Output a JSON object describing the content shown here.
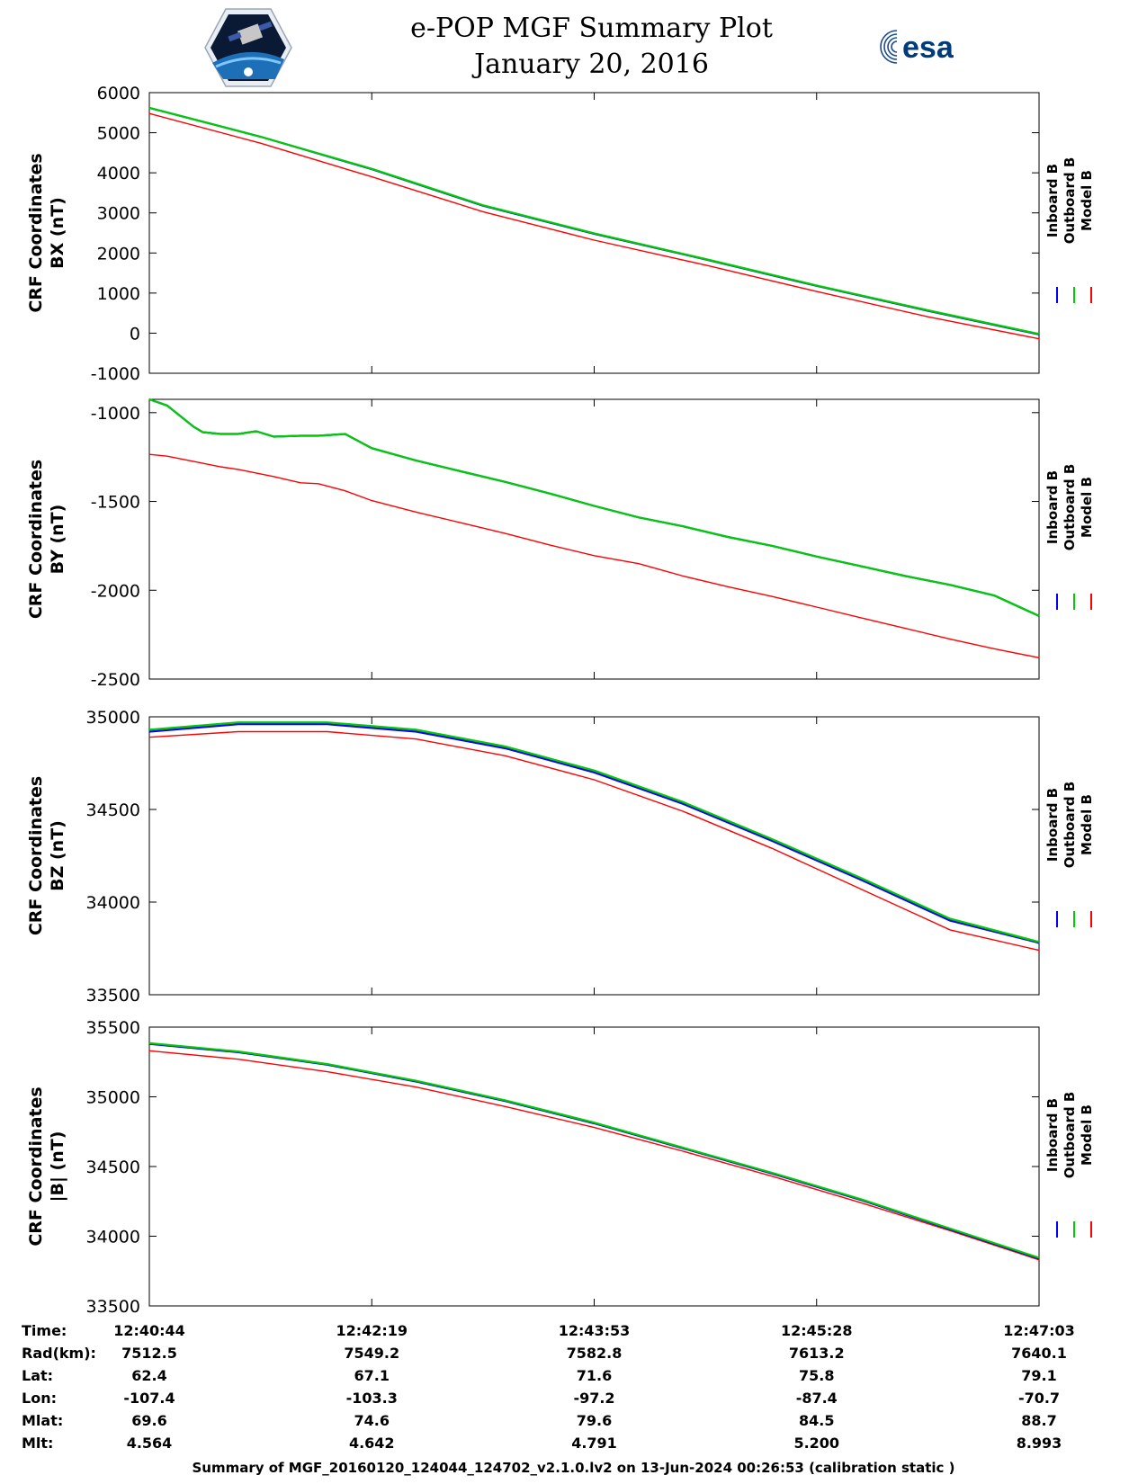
{
  "header": {
    "title": "e-POP MGF Summary Plot",
    "date": "January 20, 2016",
    "left_logo": "cassiope-mission-logo",
    "right_logo": "esa-logo",
    "right_logo_text": "esa"
  },
  "colors": {
    "inboard": "#0000ff",
    "outboard": "#00cc00",
    "model": "#ff0000"
  },
  "legend": [
    "Inboard B",
    "Outboard B",
    "Model B"
  ],
  "chart_data": [
    {
      "type": "line",
      "ylabel_line1": "CRF Coordinates",
      "ylabel_line2": "BX (nT)",
      "ylim": [
        -1000,
        6000
      ],
      "yticks": [
        6000,
        5000,
        4000,
        3000,
        2000,
        1000,
        0,
        -1000
      ],
      "ytick_labels": [
        "6000",
        "5000",
        "4000",
        "3000",
        "2000",
        "1000",
        "0",
        "-1000"
      ],
      "x": [
        0,
        0.125,
        0.25,
        0.375,
        0.5,
        0.625,
        0.75,
        0.875,
        1.0
      ],
      "series": [
        {
          "name": "Inboard B",
          "values": [
            5620,
            4900,
            4090,
            3180,
            2480,
            1840,
            1180,
            560,
            -30
          ]
        },
        {
          "name": "Outboard B",
          "values": [
            5620,
            4900,
            4100,
            3190,
            2490,
            1850,
            1190,
            570,
            -20
          ]
        },
        {
          "name": "Model B",
          "values": [
            5480,
            4740,
            3900,
            3030,
            2320,
            1700,
            1040,
            410,
            -140
          ]
        }
      ]
    },
    {
      "type": "line",
      "ylabel_line1": "CRF Coordinates",
      "ylabel_line2": "BY (nT)",
      "ylim": [
        -2500,
        -925
      ],
      "yticks": [
        -1000,
        -1500,
        -2000,
        -2500
      ],
      "ytick_labels": [
        "-1000",
        "-1500",
        "-2000",
        "-2500"
      ],
      "x": [
        0,
        0.02,
        0.05,
        0.06,
        0.08,
        0.1,
        0.12,
        0.14,
        0.17,
        0.19,
        0.22,
        0.25,
        0.3,
        0.35,
        0.4,
        0.45,
        0.5,
        0.55,
        0.6,
        0.65,
        0.7,
        0.75,
        0.8,
        0.85,
        0.9,
        0.95,
        1.0
      ],
      "series": [
        {
          "name": "Inboard B",
          "values": [
            -925,
            -960,
            -1080,
            -1110,
            -1120,
            -1120,
            -1105,
            -1135,
            -1130,
            -1130,
            -1120,
            -1200,
            -1270,
            -1330,
            -1390,
            -1455,
            -1525,
            -1590,
            -1640,
            -1700,
            -1750,
            -1810,
            -1865,
            -1920,
            -1970,
            -2030,
            -2145
          ]
        },
        {
          "name": "Outboard B",
          "values": [
            -925,
            -960,
            -1080,
            -1110,
            -1120,
            -1120,
            -1105,
            -1135,
            -1130,
            -1130,
            -1120,
            -1200,
            -1270,
            -1330,
            -1390,
            -1455,
            -1525,
            -1590,
            -1640,
            -1700,
            -1750,
            -1810,
            -1865,
            -1920,
            -1970,
            -2030,
            -2145
          ]
        },
        {
          "name": "Model B",
          "values": [
            -1235,
            -1245,
            -1275,
            -1285,
            -1305,
            -1320,
            -1340,
            -1360,
            -1395,
            -1400,
            -1440,
            -1495,
            -1560,
            -1620,
            -1680,
            -1745,
            -1805,
            -1850,
            -1920,
            -1980,
            -2035,
            -2095,
            -2155,
            -2215,
            -2275,
            -2330,
            -2380
          ]
        }
      ]
    },
    {
      "type": "line",
      "ylabel_line1": "CRF Coordinates",
      "ylabel_line2": "BZ (nT)",
      "ylim": [
        33500,
        35000
      ],
      "yticks": [
        35000,
        34500,
        34000,
        33500
      ],
      "ytick_labels": [
        "35000",
        "34500",
        "34000",
        "33500"
      ],
      "x": [
        0,
        0.1,
        0.2,
        0.3,
        0.4,
        0.5,
        0.6,
        0.7,
        0.8,
        0.9,
        1.0
      ],
      "series": [
        {
          "name": "Inboard B",
          "values": [
            34920,
            34960,
            34960,
            34920,
            34830,
            34700,
            34530,
            34330,
            34120,
            33900,
            33780
          ]
        },
        {
          "name": "Outboard B",
          "values": [
            34930,
            34970,
            34970,
            34930,
            34840,
            34710,
            34540,
            34340,
            34130,
            33910,
            33785
          ]
        },
        {
          "name": "Model B",
          "values": [
            34890,
            34920,
            34920,
            34880,
            34790,
            34660,
            34490,
            34290,
            34070,
            33850,
            33740
          ]
        }
      ]
    },
    {
      "type": "line",
      "ylabel_line1": "CRF Coordinates",
      "ylabel_line2": "|B| (nT)",
      "ylim": [
        33500,
        35500
      ],
      "yticks": [
        35500,
        35000,
        34500,
        34000,
        33500
      ],
      "ytick_labels": [
        "35500",
        "35000",
        "34500",
        "34000",
        "33500"
      ],
      "x": [
        0,
        0.1,
        0.2,
        0.3,
        0.4,
        0.5,
        0.6,
        0.7,
        0.8,
        0.9,
        1.0
      ],
      "series": [
        {
          "name": "Inboard B",
          "values": [
            35380,
            35320,
            35230,
            35110,
            34970,
            34810,
            34630,
            34450,
            34260,
            34050,
            33840
          ]
        },
        {
          "name": "Outboard B",
          "values": [
            35385,
            35325,
            35235,
            35115,
            34975,
            34815,
            34635,
            34455,
            34265,
            34055,
            33845
          ]
        },
        {
          "name": "Model B",
          "values": [
            35330,
            35270,
            35180,
            35070,
            34930,
            34780,
            34610,
            34430,
            34240,
            34040,
            33830
          ]
        }
      ]
    }
  ],
  "footer": {
    "row_labels": [
      "Time:",
      "Rad(km):",
      "Lat:",
      "Lon:",
      "Mlat:",
      "Mlt:"
    ],
    "columns": [
      [
        "12:40:44",
        "7512.5",
        "62.4",
        "-107.4",
        "69.6",
        "4.564"
      ],
      [
        "12:42:19",
        "7549.2",
        "67.1",
        "-103.3",
        "74.6",
        "4.642"
      ],
      [
        "12:43:53",
        "7582.8",
        "71.6",
        "-97.2",
        "79.6",
        "4.791"
      ],
      [
        "12:45:28",
        "7613.2",
        "75.8",
        "-87.4",
        "84.5",
        "5.200"
      ],
      [
        "12:47:03",
        "7640.1",
        "79.1",
        "-70.7",
        "88.7",
        "8.993"
      ]
    ],
    "footnote": "Summary of MGF_20160120_124044_124702_v2.1.0.lv2 on 13-Jun-2024 00:26:53 (calibration static )"
  }
}
